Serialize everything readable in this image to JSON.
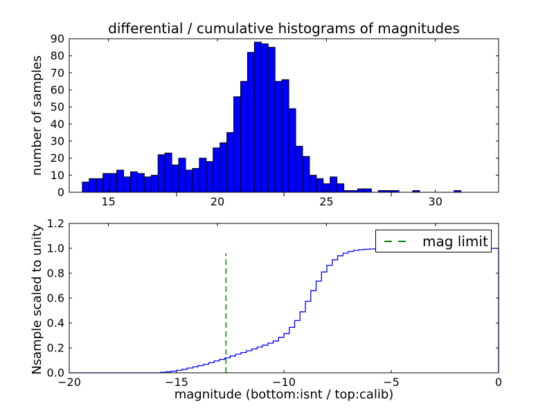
{
  "title": "differential / cumulative histograms of magnitudes",
  "legend": {
    "label": "mag limit"
  },
  "colors": {
    "background": "#ffffff",
    "bar_fill": "#0000ff",
    "bar_edge": "#000000",
    "cumulative_line": "#0000ff",
    "mag_limit_line": "#008000",
    "axis": "#000000"
  },
  "chart_data": [
    {
      "id": "differential-histogram",
      "type": "bar",
      "title": "differential / cumulative histograms of magnitudes",
      "xlabel": "",
      "ylabel": "number of samples",
      "xlim": [
        13.2,
        32.9
      ],
      "ylim": [
        0,
        90
      ],
      "xticks": [
        15,
        20,
        25,
        30
      ],
      "xtick_labels": [
        "15",
        "20",
        "25",
        "30"
      ],
      "yticks": [
        0,
        10,
        20,
        30,
        40,
        50,
        60,
        70,
        80,
        90
      ],
      "ytick_labels": [
        "0",
        "10",
        "20",
        "30",
        "40",
        "50",
        "60",
        "70",
        "80",
        "90"
      ],
      "grid": false,
      "bins": {
        "start": 13.8,
        "width": 0.3158
      },
      "values": [
        6,
        8,
        8,
        11,
        11,
        13,
        9,
        12,
        11,
        9,
        10,
        22,
        23,
        16,
        20,
        13,
        14,
        20,
        18,
        26,
        29,
        35,
        56,
        65,
        82,
        88,
        87,
        85,
        65,
        66,
        49,
        27,
        21,
        10,
        8,
        5,
        9,
        5,
        1,
        1,
        2,
        2,
        0,
        1,
        1,
        1,
        0,
        0,
        1,
        0,
        0,
        0,
        0,
        0,
        1
      ],
      "secondary_isnt_ticks": [
        -15,
        -10,
        -5
      ]
    },
    {
      "id": "cumulative-histogram",
      "type": "line",
      "xlabel": "magnitude (bottom:isnt / top:calib)",
      "ylabel": "Nsample scaled to unity",
      "xlim": [
        -20,
        0
      ],
      "ylim": [
        0,
        1.2
      ],
      "xticks": [
        -20,
        -15,
        -10,
        -5,
        0
      ],
      "xtick_labels": [
        "−20",
        "−15",
        "−10",
        "−5",
        "0"
      ],
      "yticks": [
        0,
        0.2,
        0.4,
        0.6,
        0.8,
        1.0,
        1.2
      ],
      "ytick_labels": [
        "0.0",
        "0.2",
        "0.4",
        "0.6",
        "0.8",
        "1.0",
        "1.2"
      ],
      "grid": false,
      "top_axis_calib_ticks": [
        15,
        20,
        25,
        30
      ],
      "legend": {
        "label": "mag limit",
        "position": "upper right"
      },
      "mag_limit": {
        "x": -12.7,
        "ymax_fraction_of_axes": 0.8
      },
      "step_points": [
        [
          -15.75,
          0.004
        ],
        [
          -15.5,
          0.008
        ],
        [
          -15.25,
          0.013
        ],
        [
          -15.0,
          0.02
        ],
        [
          -14.75,
          0.028
        ],
        [
          -14.5,
          0.038
        ],
        [
          -14.25,
          0.048
        ],
        [
          -14.0,
          0.058
        ],
        [
          -13.75,
          0.068
        ],
        [
          -13.5,
          0.082
        ],
        [
          -13.25,
          0.096
        ],
        [
          -13.0,
          0.108
        ],
        [
          -12.75,
          0.12
        ],
        [
          -12.5,
          0.135
        ],
        [
          -12.25,
          0.15
        ],
        [
          -12.0,
          0.163
        ],
        [
          -11.75,
          0.177
        ],
        [
          -11.5,
          0.192
        ],
        [
          -11.25,
          0.207
        ],
        [
          -11.0,
          0.222
        ],
        [
          -10.75,
          0.238
        ],
        [
          -10.5,
          0.256
        ],
        [
          -10.25,
          0.285
        ],
        [
          -10.0,
          0.315
        ],
        [
          -9.75,
          0.365
        ],
        [
          -9.5,
          0.42
        ],
        [
          -9.25,
          0.49
        ],
        [
          -9.0,
          0.575
        ],
        [
          -8.75,
          0.66
        ],
        [
          -8.5,
          0.737
        ],
        [
          -8.25,
          0.81
        ],
        [
          -8.0,
          0.863
        ],
        [
          -7.75,
          0.908
        ],
        [
          -7.5,
          0.94
        ],
        [
          -7.25,
          0.961
        ],
        [
          -7.0,
          0.975
        ],
        [
          -6.75,
          0.984
        ],
        [
          -6.5,
          0.989
        ],
        [
          -6.25,
          0.9925
        ],
        [
          -6.0,
          0.995
        ],
        [
          -5.5,
          0.9965
        ],
        [
          -5.0,
          0.9975
        ],
        [
          -4.0,
          0.998
        ],
        [
          -3.0,
          0.9985
        ],
        [
          -2.0,
          0.999
        ],
        [
          -1.0,
          0.9995
        ],
        [
          0,
          1.0
        ]
      ],
      "closes_to_zero_at_right_edge": true
    }
  ]
}
